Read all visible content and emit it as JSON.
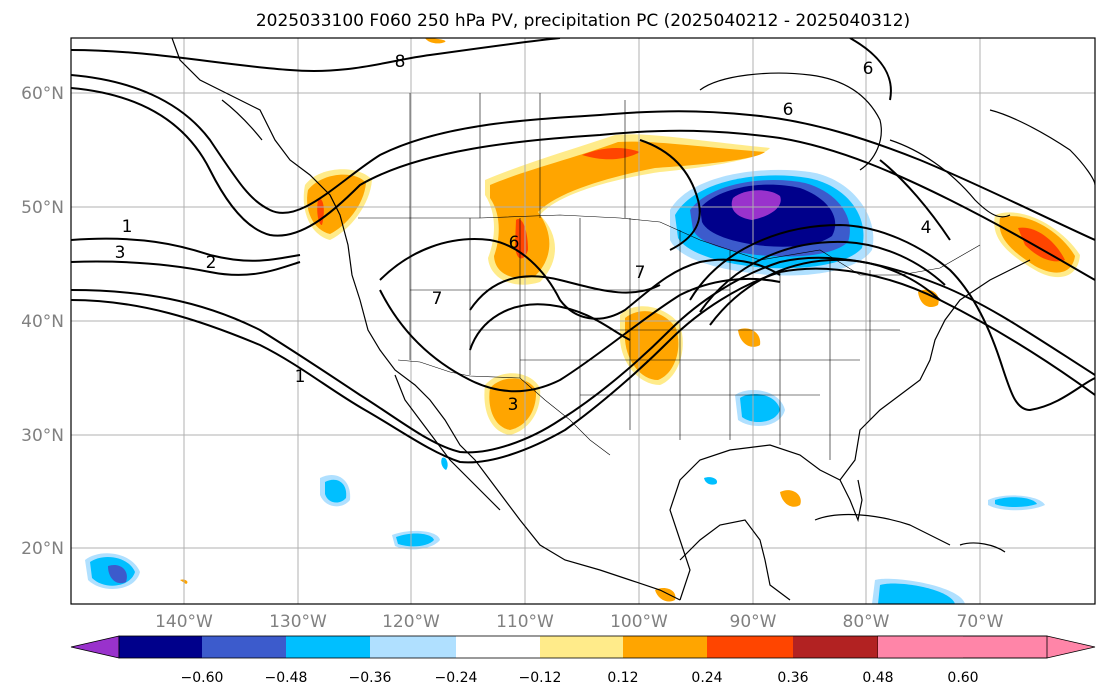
{
  "title": "2025033100 F060 250 hPa PV, precipitation PC (2025040212 - 2025040312)",
  "map": {
    "lat_labels": [
      "60°N",
      "50°N",
      "40°N",
      "30°N",
      "20°N"
    ],
    "lon_labels": [
      "140°W",
      "130°W",
      "120°W",
      "110°W",
      "100°W",
      "90°W",
      "80°W",
      "70°W"
    ],
    "contour_labels": [
      "8",
      "6",
      "1",
      "3",
      "2",
      "6",
      "7",
      "7",
      "3",
      "1",
      "4",
      "6"
    ]
  },
  "colorbar": {
    "ticks": [
      "−0.60",
      "−0.48",
      "−0.36",
      "−0.24",
      "−0.12",
      "0.12",
      "0.24",
      "0.36",
      "0.48",
      "0.60"
    ],
    "colors": [
      "#9932cc",
      "#00008b",
      "#3c5bcc",
      "#00bfff",
      "#b0e0ff",
      "#ffffff",
      "#ffeb8a",
      "#ffa500",
      "#ff4500",
      "#b22222",
      "#ff85a8"
    ]
  },
  "colors": {
    "c_purple": "#9932cc",
    "c_navy": "#00008b",
    "c_blue": "#3c5bcc",
    "c_cyan": "#00bfff",
    "c_lightblue": "#b0e0ff",
    "c_yellow": "#ffeb8a",
    "c_orange": "#ffa500",
    "c_red": "#ff4500",
    "c_darkred": "#b22222",
    "c_pink": "#ff85a8",
    "grid": "#b0b0b0",
    "label": "#808080"
  }
}
